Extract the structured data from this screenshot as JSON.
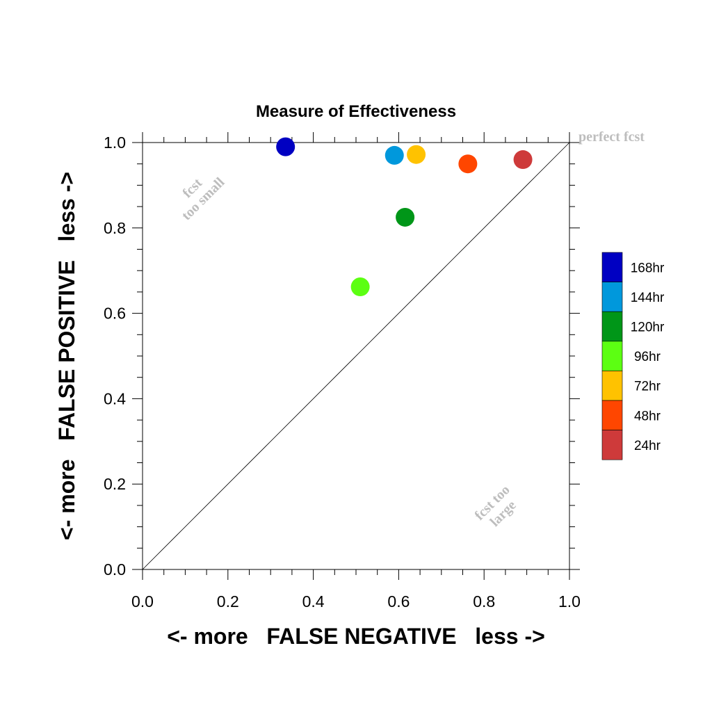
{
  "chart_data": {
    "type": "scatter",
    "title": "Measure of Effectiveness",
    "xlabel": "<- more   FALSE NEGATIVE   less ->",
    "ylabel": "<- more   FALSE POSITIVE   less ->",
    "xlim": [
      0.0,
      1.0
    ],
    "ylim": [
      0.0,
      1.0
    ],
    "xticks": [
      "0.0",
      "0.2",
      "0.4",
      "0.6",
      "0.8",
      "1.0"
    ],
    "yticks": [
      "0.0",
      "0.2",
      "0.4",
      "0.6",
      "0.8",
      "1.0"
    ],
    "reference_line": "diagonal y = x",
    "grid": false,
    "legend_placement": "right",
    "annotations": {
      "perfect": "perfect fcst",
      "too_small_1": "fcst",
      "too_small_2": "too small",
      "too_large_1": "fcst too",
      "too_large_2": "large"
    },
    "series": [
      {
        "name": "168hr",
        "color": "#0000c2",
        "x": 0.335,
        "y": 0.99
      },
      {
        "name": "144hr",
        "color": "#0098dc",
        "x": 0.59,
        "y": 0.97
      },
      {
        "name": "120hr",
        "color": "#009618",
        "x": 0.615,
        "y": 0.825
      },
      {
        "name": "96hr",
        "color": "#5cff12",
        "x": 0.51,
        "y": 0.662
      },
      {
        "name": "72hr",
        "color": "#ffc200",
        "x": 0.641,
        "y": 0.972
      },
      {
        "name": "48hr",
        "color": "#ff4600",
        "x": 0.762,
        "y": 0.95
      },
      {
        "name": "24hr",
        "color": "#ce3a3a",
        "x": 0.891,
        "y": 0.96
      }
    ]
  }
}
